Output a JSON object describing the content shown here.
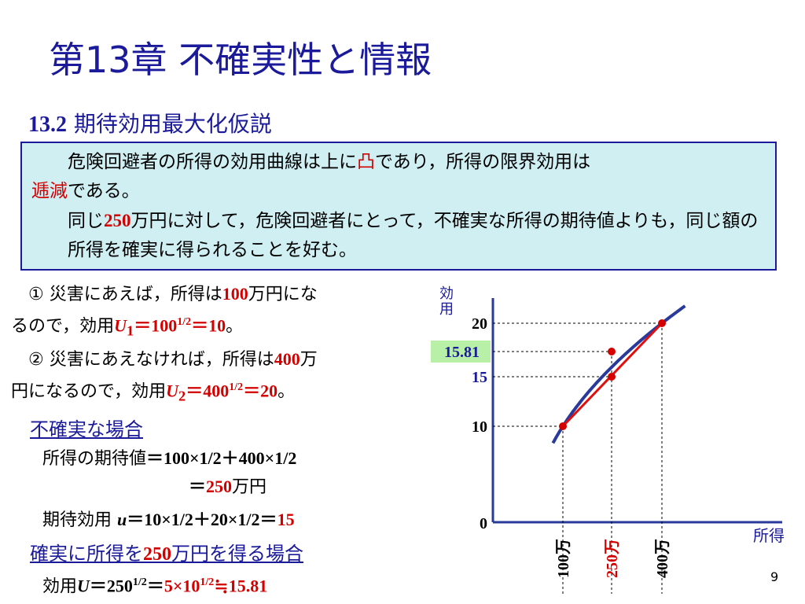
{
  "title": "第13章 不確実性と情報",
  "subtitle_num": "13.2",
  "subtitle_text": " 期待効用最大化仮説",
  "box": {
    "p1a": "危険回避者の所得の効用曲線は上に",
    "p1b": "凸",
    "p1c": "であり，所得の限界効用は",
    "p1d": "逓減",
    "p1e": "である。",
    "p2a": "同じ",
    "p2b": "250",
    "p2c": "万円に対して，危険回避者にとって，不確実な所得の期待値よりも，同じ額の所得を確実に得られることを好む。"
  },
  "cases": {
    "c1a": "① 災害にあえば，所得は",
    "c1b": "100",
    "c1c": "万円にな",
    "c1d": "るので，効用",
    "c1u": "U",
    "c1sub": "1",
    "c1e": "＝100",
    "c1sup": "1/2",
    "c1f": "＝10",
    "c1g": "。",
    "c2a": "② 災害にあえなければ，所得は",
    "c2b": "400",
    "c2c": "万",
    "c2d": "円になるので，効用",
    "c2u": "U",
    "c2sub": "2",
    "c2e": "＝400",
    "c2sup": "1/2",
    "c2f": "＝20",
    "c2g": "。"
  },
  "uncertain": {
    "header": "不確実な場合",
    "l1a": "所得の期待値",
    "l1b": "＝100×1/2＋400×1/2",
    "l2a": "＝",
    "l2b": "250",
    "l2c": "万円",
    "l3a": "期待効用 ",
    "l3u": "u",
    "l3b": "＝10×1/2＋20×1/2＝",
    "l3c": "15"
  },
  "certain": {
    "header_a": "確実に所得を",
    "header_b": "250",
    "header_c": "万円を得る場合",
    "l1a": "効用",
    "l1u": "U",
    "l1b": "＝250",
    "l1sup": "1/2",
    "l1c": "＝",
    "l1d": "5×10",
    "l1sup2": "1/2",
    "l1e": "≒15.81"
  },
  "chart_data": {
    "type": "line",
    "ylabel": "効用",
    "xlabel": "所得",
    "origin_label": "0",
    "y_ticks": [
      "20",
      "15.81",
      "15",
      "10"
    ],
    "x_ticks": [
      "100万",
      "250万",
      "400万"
    ],
    "curve": "U = 所得^(1/2)",
    "points": [
      {
        "x": 100,
        "y": 10
      },
      {
        "x": 250,
        "y": 15
      },
      {
        "x": 250,
        "y": 15.81
      },
      {
        "x": 400,
        "y": 20
      }
    ],
    "chord": [
      {
        "x": 100,
        "y": 10
      },
      {
        "x": 400,
        "y": 20
      }
    ],
    "colors": {
      "curve": "#2a3a9a",
      "chord": "#e01010",
      "point": "#d40000",
      "highlight": "#b9f0a8"
    }
  },
  "page_number": "9"
}
